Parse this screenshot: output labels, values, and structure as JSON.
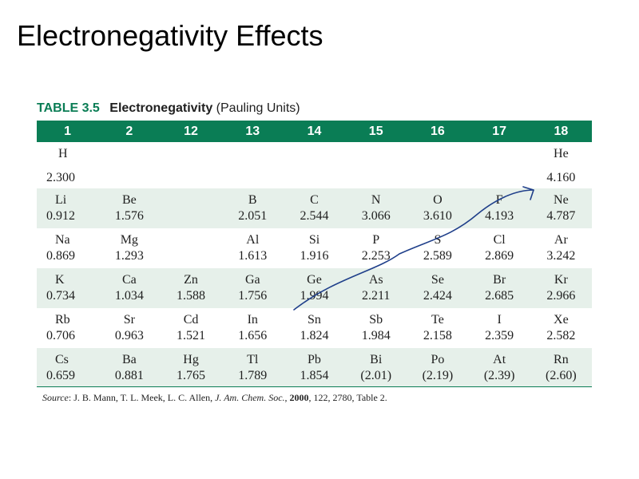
{
  "slide_title": "Electronegativity Effects",
  "caption": {
    "number": "TABLE 3.5",
    "title": "Electronegativity",
    "units": "(Pauling Units)"
  },
  "headers": [
    "1",
    "2",
    "12",
    "13",
    "14",
    "15",
    "16",
    "17",
    "18"
  ],
  "rows": [
    [
      {
        "sym": "H",
        "val": "2.300"
      },
      {
        "sym": "",
        "val": ""
      },
      {
        "sym": "",
        "val": ""
      },
      {
        "sym": "",
        "val": ""
      },
      {
        "sym": "",
        "val": ""
      },
      {
        "sym": "",
        "val": ""
      },
      {
        "sym": "",
        "val": ""
      },
      {
        "sym": "",
        "val": ""
      },
      {
        "sym": "He",
        "val": "4.160"
      }
    ],
    [
      {
        "sym": "Li",
        "val": "0.912"
      },
      {
        "sym": "Be",
        "val": "1.576"
      },
      {
        "sym": "",
        "val": ""
      },
      {
        "sym": "B",
        "val": "2.051"
      },
      {
        "sym": "C",
        "val": "2.544"
      },
      {
        "sym": "N",
        "val": "3.066"
      },
      {
        "sym": "O",
        "val": "3.610"
      },
      {
        "sym": "F",
        "val": "4.193"
      },
      {
        "sym": "Ne",
        "val": "4.787"
      }
    ],
    [
      {
        "sym": "Na",
        "val": "0.869"
      },
      {
        "sym": "Mg",
        "val": "1.293"
      },
      {
        "sym": "",
        "val": ""
      },
      {
        "sym": "Al",
        "val": "1.613"
      },
      {
        "sym": "Si",
        "val": "1.916"
      },
      {
        "sym": "P",
        "val": "2.253"
      },
      {
        "sym": "S",
        "val": "2.589"
      },
      {
        "sym": "Cl",
        "val": "2.869"
      },
      {
        "sym": "Ar",
        "val": "3.242"
      }
    ],
    [
      {
        "sym": "K",
        "val": "0.734"
      },
      {
        "sym": "Ca",
        "val": "1.034"
      },
      {
        "sym": "Zn",
        "val": "1.588"
      },
      {
        "sym": "Ga",
        "val": "1.756"
      },
      {
        "sym": "Ge",
        "val": "1.994"
      },
      {
        "sym": "As",
        "val": "2.211"
      },
      {
        "sym": "Se",
        "val": "2.424"
      },
      {
        "sym": "Br",
        "val": "2.685"
      },
      {
        "sym": "Kr",
        "val": "2.966"
      }
    ],
    [
      {
        "sym": "Rb",
        "val": "0.706"
      },
      {
        "sym": "Sr",
        "val": "0.963"
      },
      {
        "sym": "Cd",
        "val": "1.521"
      },
      {
        "sym": "In",
        "val": "1.656"
      },
      {
        "sym": "Sn",
        "val": "1.824"
      },
      {
        "sym": "Sb",
        "val": "1.984"
      },
      {
        "sym": "Te",
        "val": "2.158"
      },
      {
        "sym": "I",
        "val": "2.359"
      },
      {
        "sym": "Xe",
        "val": "2.582"
      }
    ],
    [
      {
        "sym": "Cs",
        "val": "0.659"
      },
      {
        "sym": "Ba",
        "val": "0.881"
      },
      {
        "sym": "Hg",
        "val": "1.765"
      },
      {
        "sym": "Tl",
        "val": "1.789"
      },
      {
        "sym": "Pb",
        "val": "1.854"
      },
      {
        "sym": "Bi",
        "val": "(2.01)"
      },
      {
        "sym": "Po",
        "val": "(2.19)"
      },
      {
        "sym": "At",
        "val": "(2.39)"
      },
      {
        "sym": "Rn",
        "val": "(2.60)"
      }
    ]
  ],
  "source": {
    "label": "Source",
    "authors": ": J. B. Mann, T. L. Meek, L. C. Allen, ",
    "journal": "J. Am. Chem. Soc.",
    "sep": ", ",
    "year": "2000",
    "rest": ", 122, 2780, Table 2."
  },
  "colors": {
    "header_bg": "#0a7d55",
    "band_bg": "#e6f0ea",
    "annotation_ink": "#1f3f8a"
  }
}
